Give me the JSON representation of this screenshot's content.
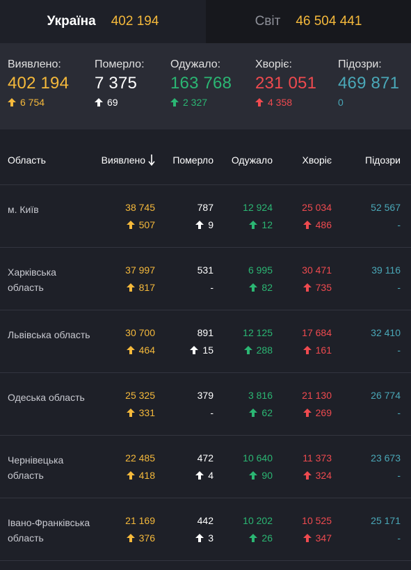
{
  "tabs": [
    {
      "label": "Україна",
      "value": "402 194"
    },
    {
      "label": "Світ",
      "value": "46 504 441"
    }
  ],
  "summary": [
    {
      "label": "Виявлено:",
      "value": "402 194",
      "delta": "6 754",
      "color": "#f5b93b"
    },
    {
      "label": "Померло:",
      "value": "7 375",
      "delta": "69",
      "color": "#ffffff"
    },
    {
      "label": "Одужало:",
      "value": "163 768",
      "delta": "2 327",
      "color": "#2bb673"
    },
    {
      "label": "Хворіє:",
      "value": "231 051",
      "delta": "4 358",
      "color": "#ef4a4f"
    },
    {
      "label": "Підозри:",
      "value": "469 871",
      "delta": "0",
      "color": "#4aa8b8"
    }
  ],
  "table": {
    "headers": [
      "Область",
      "Виявлено",
      "Померло",
      "Одужало",
      "Хворіє",
      "Підозри"
    ],
    "sort_icon": "arrow-down-icon",
    "rows": [
      {
        "region": "м. Київ",
        "detected": "38 745",
        "detected_d": "507",
        "died": "787",
        "died_d": "9",
        "recovered": "12 924",
        "recovered_d": "12",
        "sick": "25 034",
        "sick_d": "486",
        "suspected": "52 567",
        "suspected_d": "-"
      },
      {
        "region": "Харківська область",
        "detected": "37 997",
        "detected_d": "817",
        "died": "531",
        "died_d": "-",
        "recovered": "6 995",
        "recovered_d": "82",
        "sick": "30 471",
        "sick_d": "735",
        "suspected": "39 116",
        "suspected_d": "-"
      },
      {
        "region": "Львівська область",
        "detected": "30 700",
        "detected_d": "464",
        "died": "891",
        "died_d": "15",
        "recovered": "12 125",
        "recovered_d": "288",
        "sick": "17 684",
        "sick_d": "161",
        "suspected": "32 410",
        "suspected_d": "-"
      },
      {
        "region": "Одеська область",
        "detected": "25 325",
        "detected_d": "331",
        "died": "379",
        "died_d": "-",
        "recovered": "3 816",
        "recovered_d": "62",
        "sick": "21 130",
        "sick_d": "269",
        "suspected": "26 774",
        "suspected_d": "-"
      },
      {
        "region": "Чернівецька область",
        "detected": "22 485",
        "detected_d": "418",
        "died": "472",
        "died_d": "4",
        "recovered": "10 640",
        "recovered_d": "90",
        "sick": "11 373",
        "sick_d": "324",
        "suspected": "23 673",
        "suspected_d": "-"
      },
      {
        "region": "Івано-Франківська область",
        "detected": "21 169",
        "detected_d": "376",
        "died": "442",
        "died_d": "3",
        "recovered": "10 202",
        "recovered_d": "26",
        "sick": "10 525",
        "sick_d": "347",
        "suspected": "25 171",
        "suspected_d": "-"
      }
    ]
  }
}
